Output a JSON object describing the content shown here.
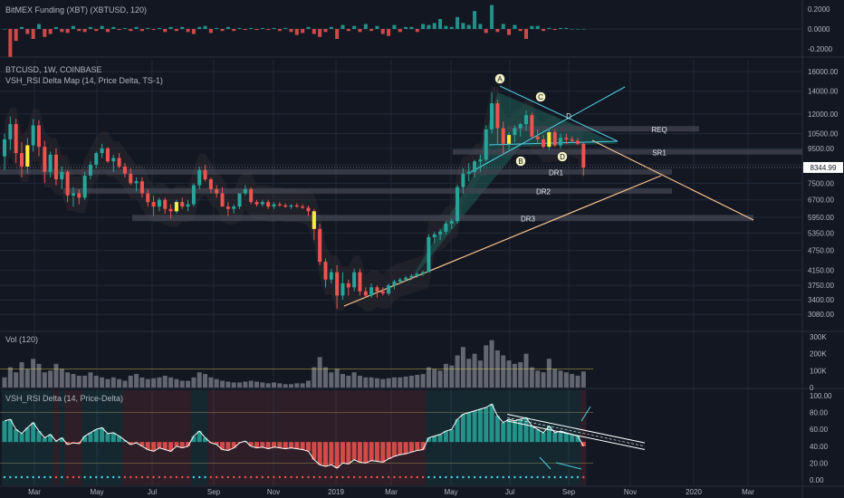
{
  "colors": {
    "bg": "#131722",
    "grid": "#1f2937",
    "divider": "#2a2e39",
    "text": "#b2b5be",
    "up": "#26a69a",
    "down": "#ef5350",
    "highlight": "#ffeb3b",
    "teal_fill": "#1f5f5a",
    "cloud": "#2b4a4a",
    "cloud_dark": "#3a3035",
    "zone": "#434651",
    "trend": "#f6c28b",
    "cyan": "#4dd0e1",
    "vol": "#787b86",
    "price_tag_bg": "#ffffff",
    "price_tag_fg": "#131722"
  },
  "panes": {
    "funding": {
      "title": "BitMEX Funding (XBT) (XBTUSD, 120)",
      "ticks": [
        "0.2000",
        "0.0000",
        "-0.2000"
      ]
    },
    "price": {
      "title": "BTCUSD, 1W, COINBASE",
      "indicator": "VSH_RSI Delta Map (14, Price Delta, TS-1)",
      "ticks": [
        "16000.00",
        "14000.00",
        "12000.00",
        "10500.00",
        "9500.00",
        "8500.00",
        "7500.00",
        "6700.00",
        "5950.00",
        "5350.00",
        "4750.00",
        "4150.00",
        "3750.00",
        "3400.00",
        "3080.00"
      ],
      "last_price": "8344.99",
      "zones": [
        "REQ",
        "SR1",
        "DR1",
        "DR2",
        "DR3"
      ],
      "pattern_points": [
        "A",
        "B",
        "C",
        "D",
        "D"
      ]
    },
    "volume": {
      "title": "Vol (120)",
      "ticks": [
        "300K",
        "200K",
        "100K",
        "0"
      ]
    },
    "rsi": {
      "title": "VSH_RSI Delta (14, Price-Delta)",
      "ticks": [
        "100.00",
        "80.00",
        "60.00",
        "40.00",
        "20.00",
        "0.00"
      ]
    }
  },
  "x_axis": {
    "labels": [
      "Mar",
      "May",
      "Jul",
      "Sep",
      "Nov",
      "2019",
      "Mar",
      "May",
      "Jul",
      "Sep",
      "Nov",
      "2020",
      "Mar"
    ]
  },
  "chart_data": {
    "type": "candlestick",
    "title": "BTCUSD, 1W, COINBASE",
    "period": "1W",
    "yscale": "log",
    "ylim": [
      2900,
      16500
    ],
    "candles": [
      [
        9000,
        10500,
        8200,
        10100
      ],
      [
        10100,
        11800,
        9400,
        11200
      ],
      [
        11200,
        11600,
        8600,
        9200
      ],
      [
        9200,
        9900,
        7800,
        8400
      ],
      [
        8400,
        10200,
        8000,
        9700
      ],
      [
        9700,
        11600,
        9300,
        11100
      ],
      [
        11100,
        11500,
        9000,
        9600
      ],
      [
        9600,
        10000,
        7500,
        8100
      ],
      [
        8100,
        9300,
        7800,
        9100
      ],
      [
        9100,
        9500,
        7400,
        7700
      ],
      [
        7700,
        8400,
        7200,
        8100
      ],
      [
        8100,
        8200,
        6600,
        6900
      ],
      [
        6900,
        7300,
        6400,
        7000
      ],
      [
        7000,
        7200,
        6500,
        6800
      ],
      [
        6800,
        8100,
        6700,
        7900
      ],
      [
        7900,
        8700,
        7700,
        8500
      ],
      [
        8500,
        9300,
        8300,
        9200
      ],
      [
        9200,
        9800,
        8900,
        9500
      ],
      [
        9500,
        9600,
        8600,
        8700
      ],
      [
        8700,
        9100,
        8100,
        8900
      ],
      [
        8900,
        9200,
        8300,
        8400
      ],
      [
        8400,
        8600,
        7800,
        8000
      ],
      [
        8000,
        8300,
        7400,
        7500
      ],
      [
        7500,
        7800,
        7100,
        7600
      ],
      [
        7600,
        7800,
        6800,
        7000
      ],
      [
        7000,
        7200,
        6400,
        6600
      ],
      [
        6600,
        6900,
        6000,
        6400
      ],
      [
        6400,
        6800,
        6200,
        6700
      ],
      [
        6700,
        6800,
        6100,
        6300
      ],
      [
        6300,
        6500,
        5900,
        6200
      ],
      [
        6200,
        6700,
        6100,
        6600
      ],
      [
        6600,
        6800,
        6300,
        6400
      ],
      [
        6400,
        6700,
        6200,
        6500
      ],
      [
        6500,
        7500,
        6400,
        7400
      ],
      [
        7400,
        8400,
        7200,
        8200
      ],
      [
        8200,
        8500,
        7600,
        7700
      ],
      [
        7700,
        7800,
        7000,
        7200
      ],
      [
        7200,
        7400,
        6800,
        7000
      ],
      [
        7000,
        7300,
        6400,
        6400
      ],
      [
        6400,
        6600,
        6000,
        6300
      ],
      [
        6300,
        6500,
        6100,
        6400
      ],
      [
        6400,
        6900,
        6300,
        7000
      ],
      [
        7000,
        7400,
        6900,
        7200
      ],
      [
        7200,
        7300,
        6500,
        6600
      ],
      [
        6600,
        6700,
        6400,
        6500
      ],
      [
        6500,
        6700,
        6400,
        6600
      ],
      [
        6600,
        6700,
        6300,
        6400
      ],
      [
        6400,
        6600,
        6300,
        6500
      ],
      [
        6500,
        6600,
        6400,
        6450
      ],
      [
        6450,
        6550,
        6350,
        6400
      ],
      [
        6400,
        6500,
        6300,
        6450
      ],
      [
        6450,
        6550,
        6350,
        6400
      ],
      [
        6400,
        6500,
        6300,
        6350
      ],
      [
        6350,
        6450,
        6000,
        6200
      ],
      [
        6200,
        6300,
        5100,
        5500
      ],
      [
        5500,
        5700,
        4300,
        4400
      ],
      [
        4400,
        4500,
        3700,
        3900
      ],
      [
        3900,
        4200,
        3800,
        4100
      ],
      [
        4100,
        4300,
        3200,
        3500
      ],
      [
        3500,
        4100,
        3400,
        3800
      ],
      [
        3800,
        3900,
        3500,
        3700
      ],
      [
        3700,
        4200,
        3600,
        4100
      ],
      [
        4100,
        4200,
        3500,
        3600
      ],
      [
        3600,
        3700,
        3450,
        3500
      ],
      [
        3500,
        3800,
        3450,
        3700
      ],
      [
        3700,
        3750,
        3450,
        3600
      ],
      [
        3600,
        3700,
        3500,
        3550
      ],
      [
        3550,
        3800,
        3500,
        3750
      ],
      [
        3750,
        3900,
        3650,
        3850
      ],
      [
        3850,
        3950,
        3800,
        3900
      ],
      [
        3900,
        4000,
        3850,
        3950
      ],
      [
        3950,
        4050,
        3900,
        4000
      ],
      [
        4000,
        4100,
        3950,
        4050
      ],
      [
        4050,
        4150,
        4000,
        4100
      ],
      [
        4100,
        5300,
        4100,
        5200
      ],
      [
        5200,
        5400,
        5000,
        5300
      ],
      [
        5300,
        5500,
        5100,
        5400
      ],
      [
        5400,
        5800,
        5300,
        5700
      ],
      [
        5700,
        5900,
        5500,
        5800
      ],
      [
        5800,
        7400,
        5700,
        7300
      ],
      [
        7300,
        8300,
        7000,
        8000
      ],
      [
        8000,
        8600,
        7600,
        8100
      ],
      [
        8100,
        8800,
        7800,
        8700
      ],
      [
        8700,
        9100,
        8100,
        8800
      ],
      [
        8800,
        11100,
        8700,
        10800
      ],
      [
        10800,
        13900,
        10500,
        12900
      ],
      [
        12900,
        13200,
        9800,
        10900
      ],
      [
        10900,
        11400,
        9100,
        9800
      ],
      [
        9800,
        10600,
        9400,
        10400
      ],
      [
        10400,
        11100,
        9900,
        10900
      ],
      [
        10900,
        11300,
        10300,
        11200
      ],
      [
        11200,
        12300,
        10700,
        11900
      ],
      [
        11900,
        12100,
        10200,
        10300
      ],
      [
        10300,
        10800,
        9800,
        10100
      ],
      [
        10100,
        10400,
        9500,
        9600
      ],
      [
        9600,
        10900,
        9400,
        10600
      ],
      [
        10600,
        10800,
        9600,
        9700
      ],
      [
        9700,
        10500,
        9500,
        10200
      ],
      [
        10200,
        10500,
        9800,
        10100
      ],
      [
        10100,
        10300,
        9900,
        10000
      ],
      [
        10000,
        10200,
        9700,
        9800
      ],
      [
        9800,
        9900,
        7900,
        8340
      ]
    ],
    "zones": [
      {
        "label": "REQ",
        "low": 10700,
        "high": 11050
      },
      {
        "label": "SR1",
        "low": 9150,
        "high": 9450
      },
      {
        "label": "DR1",
        "low": 8000,
        "high": 8250
      },
      {
        "label": "DR2",
        "low": 7000,
        "high": 7250
      },
      {
        "label": "DR3",
        "low": 5800,
        "high": 6050
      }
    ],
    "last_price": 8344.99,
    "volume": [
      60,
      120,
      90,
      150,
      110,
      170,
      140,
      90,
      100,
      140,
      110,
      90,
      80,
      70,
      70,
      90,
      70,
      60,
      50,
      60,
      50,
      40,
      70,
      80,
      60,
      50,
      55,
      60,
      70,
      60,
      50,
      40,
      40,
      60,
      90,
      80,
      60,
      50,
      40,
      35,
      30,
      30,
      35,
      40,
      35,
      30,
      25,
      30,
      25,
      20,
      20,
      25,
      25,
      40,
      120,
      180,
      120,
      90,
      110,
      80,
      70,
      90,
      70,
      60,
      60,
      55,
      50,
      55,
      60,
      60,
      65,
      70,
      75,
      80,
      120,
      110,
      100,
      140,
      130,
      190,
      240,
      170,
      200,
      160,
      250,
      280,
      220,
      190,
      160,
      140,
      150,
      200,
      120,
      100,
      90,
      170,
      110,
      100,
      90,
      80,
      70,
      95
    ],
    "rsi": [
      70,
      72,
      60,
      55,
      62,
      68,
      58,
      50,
      54,
      46,
      50,
      42,
      44,
      43,
      52,
      56,
      60,
      62,
      55,
      56,
      52,
      47,
      42,
      44,
      40,
      36,
      34,
      38,
      36,
      34,
      40,
      38,
      40,
      52,
      58,
      50,
      44,
      42,
      36,
      35,
      38,
      44,
      46,
      40,
      38,
      39,
      37,
      39,
      38,
      37,
      38,
      37,
      36,
      34,
      24,
      18,
      16,
      18,
      14,
      20,
      19,
      24,
      21,
      20,
      23,
      22,
      21,
      25,
      28,
      30,
      31,
      33,
      35,
      36,
      50,
      52,
      54,
      58,
      60,
      72,
      78,
      80,
      82,
      84,
      86,
      90,
      76,
      68,
      72,
      70,
      72,
      74,
      64,
      60,
      56,
      64,
      56,
      58,
      56,
      54,
      52,
      40
    ],
    "funding": [
      0,
      -0.28,
      -0.12,
      0.02,
      -0.05,
      -0.1,
      0.05,
      -0.08,
      -0.05,
      0.02,
      -0.03,
      -0.04,
      0.03,
      -0.02,
      -0.03,
      0.02,
      -0.02,
      0.03,
      -0.03,
      0.02,
      -0.01,
      0.01,
      -0.02,
      0.02,
      -0.02,
      0.01,
      -0.01,
      0.01,
      -0.03,
      0.02,
      -0.02,
      0.02,
      -0.03,
      -0.05,
      0.02,
      0.03,
      -0.04,
      0.01,
      -0.02,
      0.02,
      -0.02,
      0.01,
      -0.01,
      0.01,
      -0.01,
      0.01,
      -0.01,
      0.01,
      -0.02,
      0.01,
      -0.03,
      -0.06,
      -0.04,
      0.02,
      -0.05,
      -0.08,
      -0.03,
      0.02,
      -0.1,
      0.04,
      -0.02,
      0.03,
      -0.03,
      0.05,
      -0.02,
      0.03,
      -0.05,
      -0.07,
      0.04,
      -0.03,
      0.02,
      0.02,
      -0.03,
      0.05,
      0.04,
      0.06,
      0.1,
      0.03,
      0.02,
      0.12,
      0.06,
      0.04,
      0.18,
      0.05,
      -0.04,
      0.24,
      -0.03,
      0.05,
      -0.06,
      0.04,
      -0.02,
      -0.1,
      0.03,
      0.03,
      -0.02,
      0.01,
      -0.01,
      0.01,
      0.01,
      0,
      0,
      0
    ]
  }
}
